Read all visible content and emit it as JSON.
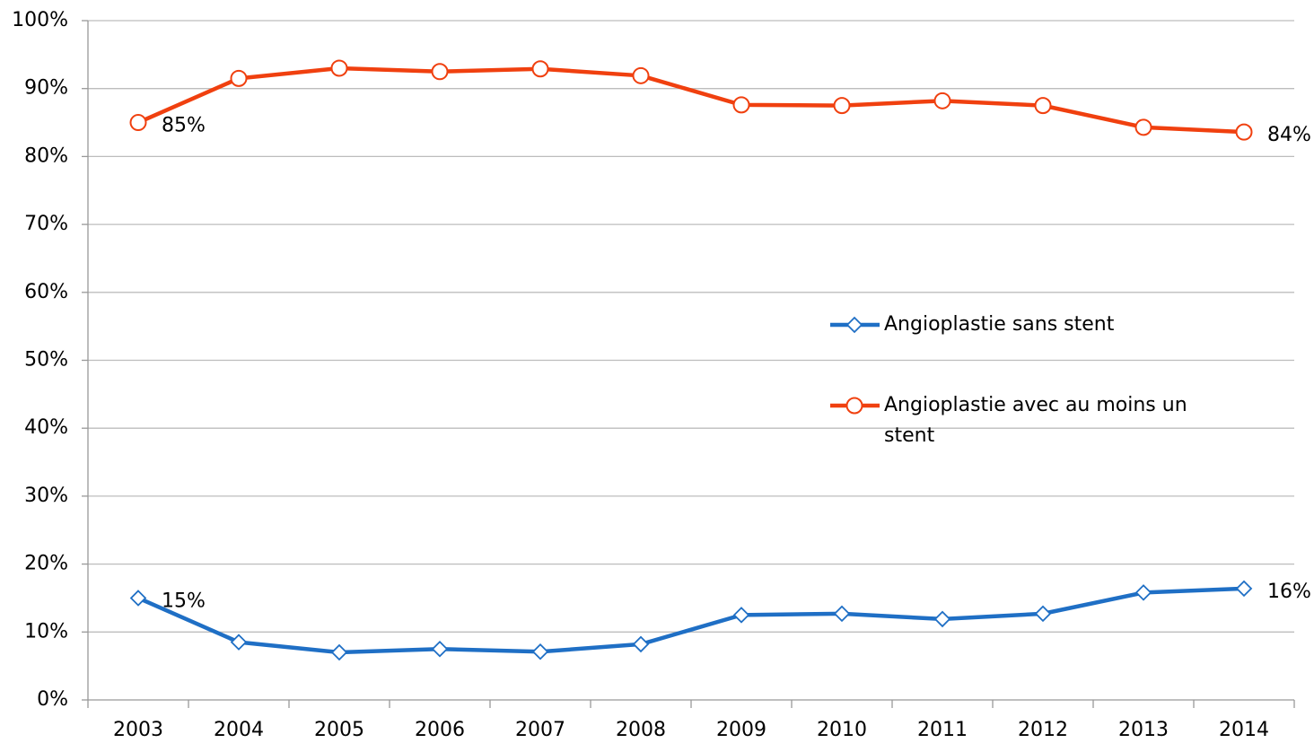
{
  "chart_data": {
    "type": "line",
    "categories": [
      "2003",
      "2004",
      "2005",
      "2006",
      "2007",
      "2008",
      "2009",
      "2010",
      "2011",
      "2012",
      "2013",
      "2014"
    ],
    "series": [
      {
        "name": "Angioplastie sans stent",
        "color": "#1f6fc5",
        "marker": "diamond",
        "values": [
          15,
          8.5,
          7.0,
          7.5,
          7.1,
          8.2,
          12.5,
          12.7,
          11.9,
          12.7,
          15.8,
          16.4
        ],
        "value_labels": [
          "15%",
          null,
          null,
          null,
          null,
          null,
          null,
          null,
          null,
          null,
          null,
          "16%"
        ]
      },
      {
        "name": "Angioplastie avec au moins un stent",
        "color": "#f0400f",
        "marker": "circle",
        "values": [
          85,
          91.5,
          93.0,
          92.5,
          92.9,
          91.9,
          87.6,
          87.5,
          88.2,
          87.5,
          84.3,
          83.6
        ],
        "value_labels": [
          "85%",
          null,
          null,
          null,
          null,
          null,
          null,
          null,
          null,
          null,
          null,
          "84%"
        ]
      }
    ],
    "ylim": [
      0,
      100
    ],
    "yticks": [
      {
        "value": 0,
        "label": "0%"
      },
      {
        "value": 10,
        "label": "10%"
      },
      {
        "value": 20,
        "label": "20%"
      },
      {
        "value": 30,
        "label": "30%"
      },
      {
        "value": 40,
        "label": "40%"
      },
      {
        "value": 50,
        "label": "50%"
      },
      {
        "value": 60,
        "label": "60%"
      },
      {
        "value": 70,
        "label": "70%"
      },
      {
        "value": 80,
        "label": "80%"
      },
      {
        "value": 90,
        "label": "90%"
      },
      {
        "value": 100,
        "label": "100%"
      }
    ],
    "grid": true,
    "legend": "right"
  }
}
